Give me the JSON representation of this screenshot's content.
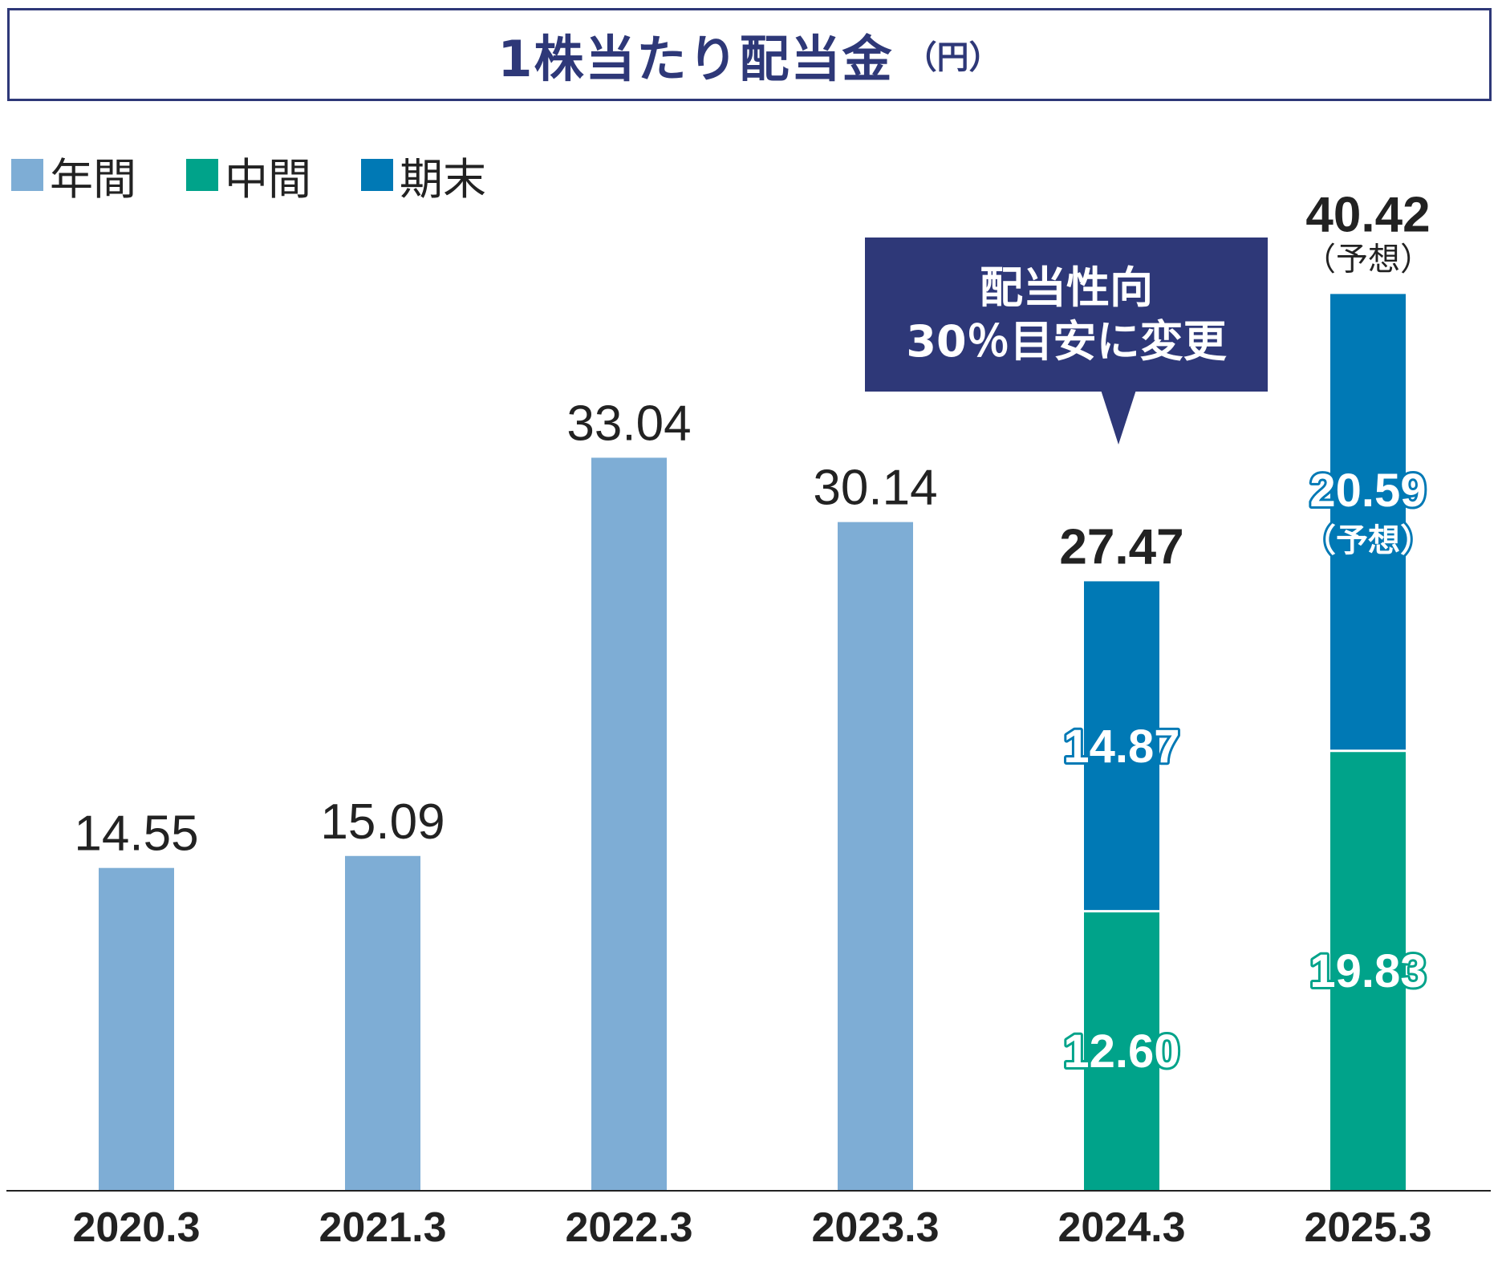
{
  "title": "1株当たり配当金",
  "unit": "（円）",
  "legend": [
    {
      "label": "年間",
      "color": "#7eadd5"
    },
    {
      "label": "中間",
      "color": "#00a38a"
    },
    {
      "label": "期末",
      "color": "#0079b5"
    }
  ],
  "callout": {
    "line1": "配当性向",
    "line2": "30％目安に変更"
  },
  "chart_data": {
    "type": "bar",
    "stacked": true,
    "categories": [
      "2020.3",
      "2021.3",
      "2022.3",
      "2023.3",
      "2024.3",
      "2025.3"
    ],
    "series": [
      {
        "name": "年間",
        "color": "#7eadd5",
        "values": [
          14.55,
          15.09,
          33.04,
          30.14,
          null,
          null
        ]
      },
      {
        "name": "中間",
        "color": "#00a38a",
        "values": [
          null,
          null,
          null,
          null,
          12.6,
          19.83
        ]
      },
      {
        "name": "期末",
        "color": "#0079b5",
        "values": [
          null,
          null,
          null,
          null,
          14.87,
          20.59
        ]
      }
    ],
    "totals": [
      "14.55",
      "15.09",
      "33.04",
      "30.14",
      "27.47",
      "40.42"
    ],
    "segment_labels": {
      "中間": [
        "",
        "",
        "",
        "",
        "12.60",
        "19.83"
      ],
      "期末": [
        "",
        "",
        "",
        "",
        "14.87",
        "20.59"
      ]
    },
    "forecast_note": "（予想）",
    "forecast_category": "2025.3",
    "ylim": [
      0,
      45
    ],
    "grid": false,
    "legend_position": "top-left"
  }
}
